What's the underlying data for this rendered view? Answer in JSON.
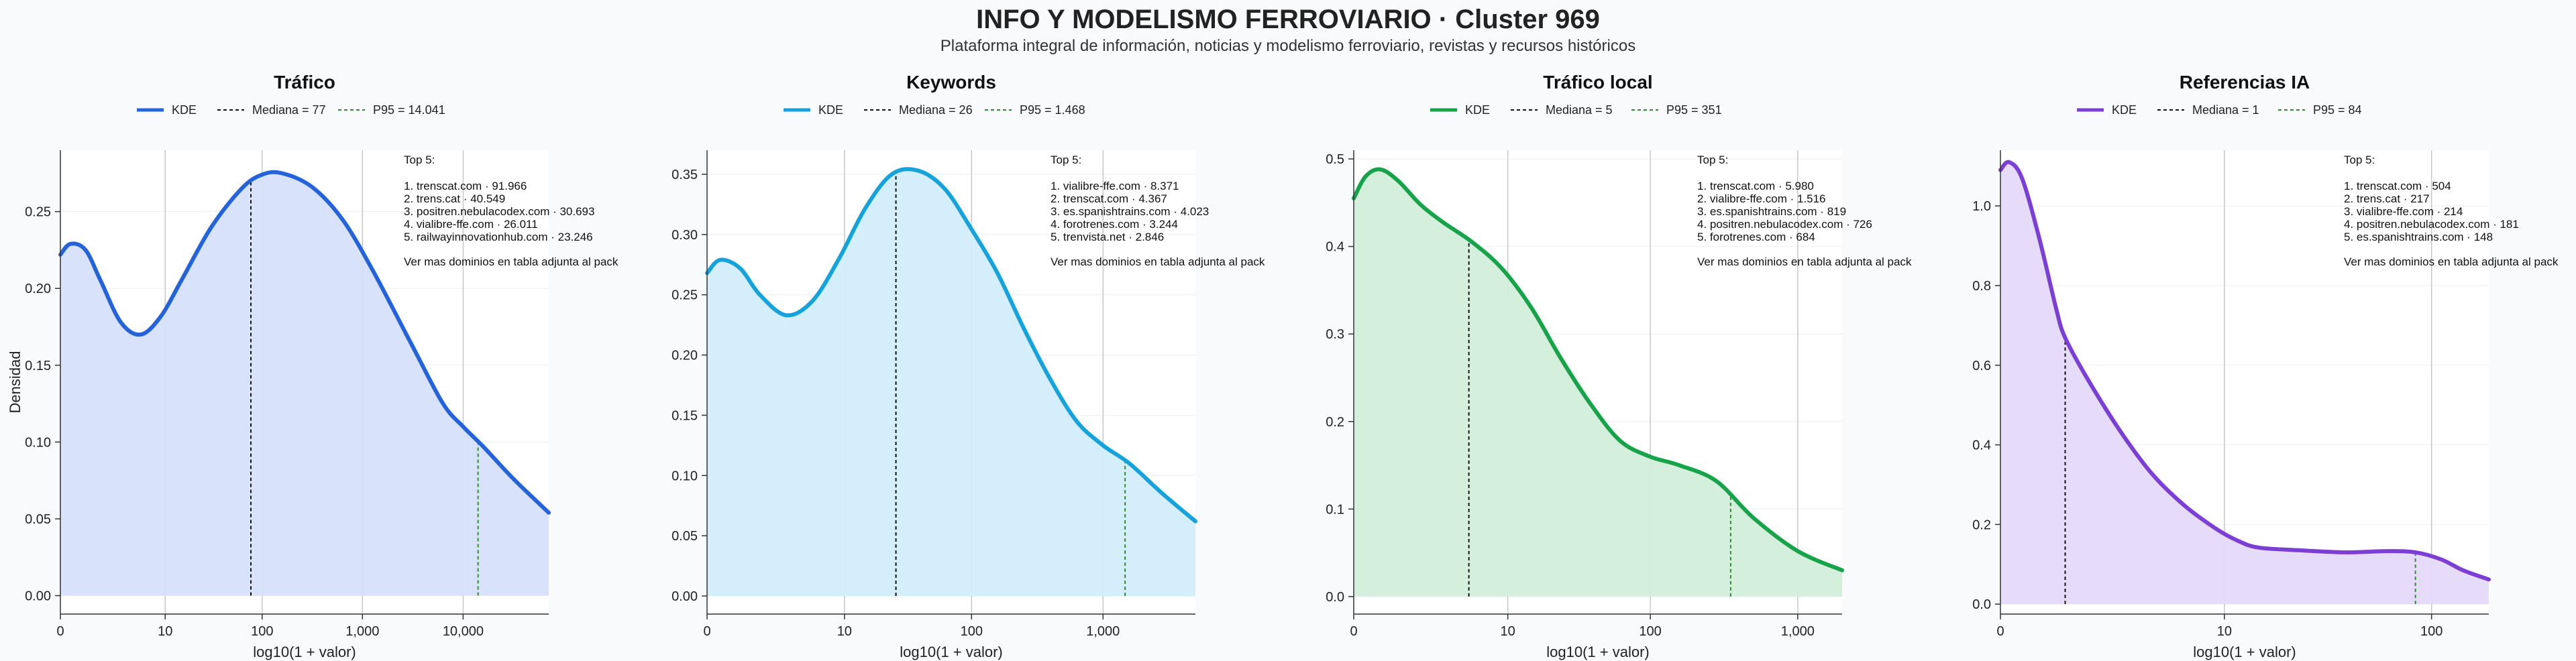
{
  "header": {
    "title": "INFO Y MODELISMO FERROVIARIO · Cluster 969",
    "subtitle": "Plataforma integral de información, noticias y modelismo ferroviario, revistas y recursos históricos"
  },
  "chart_data": [
    {
      "type": "area",
      "title": "Tráfico",
      "color": "#2563db",
      "fill": "#d6e2fb",
      "xlabel": "log10(1 + valor)",
      "ylabel": "Densidad",
      "xlim": [
        0,
        4.85
      ],
      "ylim": [
        -0.012,
        0.29
      ],
      "xticks": [
        {
          "v": 0,
          "label": "0"
        },
        {
          "v": 1.041,
          "label": "10"
        },
        {
          "v": 2.004,
          "label": "100"
        },
        {
          "v": 3.0,
          "label": "1,000"
        },
        {
          "v": 4.0,
          "label": "10,000"
        }
      ],
      "yticks": [
        {
          "v": 0,
          "label": "0.00"
        },
        {
          "v": 0.05,
          "label": "0.05"
        },
        {
          "v": 0.1,
          "label": "0.10"
        },
        {
          "v": 0.15,
          "label": "0.15"
        },
        {
          "v": 0.2,
          "label": "0.20"
        },
        {
          "v": 0.25,
          "label": "0.25"
        }
      ],
      "series": [
        {
          "x": [
            0,
            0.1,
            0.25,
            0.4,
            0.6,
            0.8,
            1.0,
            1.2,
            1.5,
            1.8,
            2.0,
            2.2,
            2.5,
            2.8,
            3.1,
            3.5,
            3.8,
            4.0,
            4.2,
            4.5,
            4.85
          ],
          "y": [
            0.222,
            0.229,
            0.225,
            0.205,
            0.178,
            0.17,
            0.182,
            0.205,
            0.24,
            0.265,
            0.274,
            0.275,
            0.266,
            0.245,
            0.212,
            0.162,
            0.125,
            0.11,
            0.097,
            0.076,
            0.054
          ]
        }
      ],
      "vlines": [
        {
          "x": 1.892,
          "color": "#111111",
          "legend": "Mediana = 77"
        },
        {
          "x": 4.148,
          "color": "#2f8a2f",
          "legend": "P95 = 14.041"
        }
      ],
      "legend": {
        "kde": "KDE",
        "median": "Mediana = 77",
        "p95": "P95 = 14.041"
      },
      "top5": {
        "heading": "Top 5:",
        "items": [
          "1. trenscat.com · 91.966",
          "2. trens.cat · 40.549",
          "3. positren.nebulacodex.com · 30.693",
          "4. vialibre-ffe.com · 26.011",
          "5. railwayinnovationhub.com · 23.246"
        ],
        "footer": "Ver mas dominios en tabla adjunta al pack"
      }
    },
    {
      "type": "area",
      "title": "Keywords",
      "color": "#16a3dc",
      "fill": "#d2eefb",
      "xlabel": "log10(1 + valor)",
      "ylabel": "",
      "xlim": [
        0,
        3.7
      ],
      "ylim": [
        -0.015,
        0.37
      ],
      "xticks": [
        {
          "v": 0,
          "label": "0"
        },
        {
          "v": 1.041,
          "label": "10"
        },
        {
          "v": 2.004,
          "label": "100"
        },
        {
          "v": 3.0,
          "label": "1,000"
        }
      ],
      "yticks": [
        {
          "v": 0,
          "label": "0.00"
        },
        {
          "v": 0.05,
          "label": "0.05"
        },
        {
          "v": 0.1,
          "label": "0.10"
        },
        {
          "v": 0.15,
          "label": "0.15"
        },
        {
          "v": 0.2,
          "label": "0.20"
        },
        {
          "v": 0.25,
          "label": "0.25"
        },
        {
          "v": 0.3,
          "label": "0.30"
        },
        {
          "v": 0.35,
          "label": "0.35"
        }
      ],
      "series": [
        {
          "x": [
            0,
            0.1,
            0.25,
            0.4,
            0.6,
            0.8,
            1.0,
            1.2,
            1.4,
            1.6,
            1.8,
            2.0,
            2.2,
            2.4,
            2.6,
            2.8,
            3.0,
            3.2,
            3.45,
            3.7
          ],
          "y": [
            0.268,
            0.279,
            0.272,
            0.25,
            0.233,
            0.245,
            0.28,
            0.322,
            0.35,
            0.353,
            0.338,
            0.305,
            0.268,
            0.222,
            0.18,
            0.145,
            0.125,
            0.11,
            0.085,
            0.062
          ]
        }
      ],
      "vlines": [
        {
          "x": 1.431,
          "color": "#111111",
          "legend": "Mediana = 26"
        },
        {
          "x": 3.167,
          "color": "#2f8a2f",
          "legend": "P95 = 1.468"
        }
      ],
      "legend": {
        "kde": "KDE",
        "median": "Mediana = 26",
        "p95": "P95 = 1.468"
      },
      "top5": {
        "heading": "Top 5:",
        "items": [
          "1. vialibre-ffe.com · 8.371",
          "2. trenscat.com · 4.367",
          "3. es.spanishtrains.com · 4.023",
          "4. forotrenes.com · 3.244",
          "5. trenvista.net · 2.846"
        ],
        "footer": "Ver mas dominios en tabla adjunta al pack"
      }
    },
    {
      "type": "area",
      "title": "Tráfico local",
      "color": "#16a34a",
      "fill": "#d2efdb",
      "xlabel": "log10(1 + valor)",
      "ylabel": "",
      "xlim": [
        0,
        3.3
      ],
      "ylim": [
        -0.02,
        0.51
      ],
      "xticks": [
        {
          "v": 0,
          "label": "0"
        },
        {
          "v": 1.041,
          "label": "10"
        },
        {
          "v": 2.004,
          "label": "100"
        },
        {
          "v": 3.0,
          "label": "1,000"
        }
      ],
      "yticks": [
        {
          "v": 0,
          "label": "0.0"
        },
        {
          "v": 0.1,
          "label": "0.1"
        },
        {
          "v": 0.2,
          "label": "0.2"
        },
        {
          "v": 0.3,
          "label": "0.3"
        },
        {
          "v": 0.4,
          "label": "0.4"
        },
        {
          "v": 0.5,
          "label": "0.5"
        }
      ],
      "series": [
        {
          "x": [
            0,
            0.08,
            0.18,
            0.3,
            0.45,
            0.6,
            0.8,
            1.0,
            1.2,
            1.4,
            1.6,
            1.8,
            2.0,
            2.2,
            2.45,
            2.7,
            3.0,
            3.3
          ],
          "y": [
            0.455,
            0.48,
            0.488,
            0.475,
            0.448,
            0.428,
            0.405,
            0.375,
            0.33,
            0.272,
            0.22,
            0.178,
            0.16,
            0.15,
            0.132,
            0.09,
            0.052,
            0.03
          ]
        }
      ],
      "vlines": [
        {
          "x": 0.778,
          "color": "#111111",
          "legend": "Mediana = 5"
        },
        {
          "x": 2.547,
          "color": "#2f8a2f",
          "legend": "P95 = 351"
        }
      ],
      "legend": {
        "kde": "KDE",
        "median": "Mediana = 5",
        "p95": "P95 = 351"
      },
      "top5": {
        "heading": "Top 5:",
        "items": [
          "1. trenscat.com · 5.980",
          "2. vialibre-ffe.com · 1.516",
          "3. es.spanishtrains.com · 819",
          "4. positren.nebulacodex.com · 726",
          "5. forotrenes.com · 684"
        ],
        "footer": "Ver mas dominios en tabla adjunta al pack"
      }
    },
    {
      "type": "area",
      "title": "Referencias IA",
      "color": "#7c3fd6",
      "fill": "#e5d9f8",
      "xlabel": "log10(1 + valor)",
      "ylabel": "",
      "xlim": [
        0,
        2.27
      ],
      "ylim": [
        -0.025,
        1.14
      ],
      "xticks": [
        {
          "v": 0,
          "label": "0"
        },
        {
          "v": 1.041,
          "label": "10"
        },
        {
          "v": 2.004,
          "label": "100"
        }
      ],
      "yticks": [
        {
          "v": 0,
          "label": "0.0"
        },
        {
          "v": 0.2,
          "label": "0.2"
        },
        {
          "v": 0.4,
          "label": "0.4"
        },
        {
          "v": 0.6,
          "label": "0.6"
        },
        {
          "v": 0.8,
          "label": "0.8"
        },
        {
          "v": 1.0,
          "label": "1.0"
        }
      ],
      "series": [
        {
          "x": [
            0,
            0.04,
            0.1,
            0.18,
            0.26,
            0.3,
            0.4,
            0.55,
            0.7,
            0.85,
            1.0,
            1.1,
            1.2,
            1.4,
            1.6,
            1.8,
            1.93,
            2.05,
            2.15,
            2.27
          ],
          "y": [
            1.09,
            1.11,
            1.07,
            0.92,
            0.74,
            0.67,
            0.57,
            0.44,
            0.33,
            0.25,
            0.19,
            0.16,
            0.142,
            0.135,
            0.13,
            0.133,
            0.13,
            0.112,
            0.085,
            0.062
          ]
        }
      ],
      "vlines": [
        {
          "x": 0.301,
          "color": "#111111",
          "legend": "Mediana = 1"
        },
        {
          "x": 1.929,
          "color": "#2f8a2f",
          "legend": "P95 = 84"
        }
      ],
      "legend": {
        "kde": "KDE",
        "median": "Mediana = 1",
        "p95": "P95 = 84"
      },
      "top5": {
        "heading": "Top 5:",
        "items": [
          "1. trenscat.com · 504",
          "2. trens.cat · 217",
          "3. vialibre-ffe.com · 214",
          "4. positren.nebulacodex.com · 181",
          "5. es.spanishtrains.com · 148"
        ],
        "footer": "Ver mas dominios en tabla adjunta al pack"
      }
    }
  ]
}
